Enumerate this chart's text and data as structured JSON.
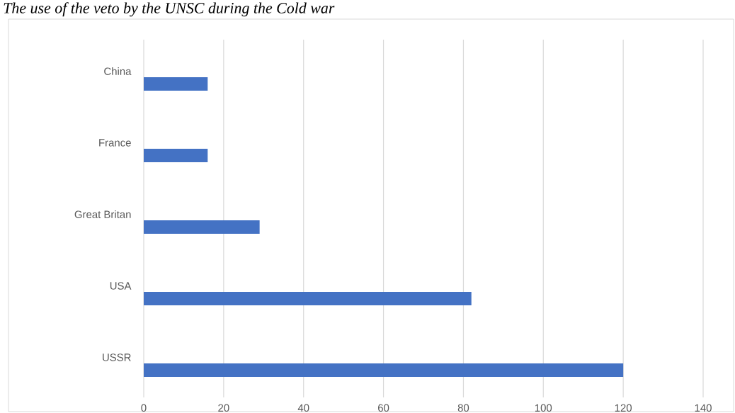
{
  "chart_data": {
    "type": "bar",
    "orientation": "horizontal",
    "title": "The use of the veto by the UNSC during the Cold war",
    "categories": [
      "China",
      "France",
      "Great Britan",
      "USA",
      "USSR"
    ],
    "values": [
      16,
      16,
      29,
      82,
      120
    ],
    "color": "#4472c4",
    "xlim": [
      0,
      140
    ],
    "xticks": [
      0,
      20,
      40,
      60,
      80,
      100,
      120,
      140
    ],
    "grid": "x"
  }
}
